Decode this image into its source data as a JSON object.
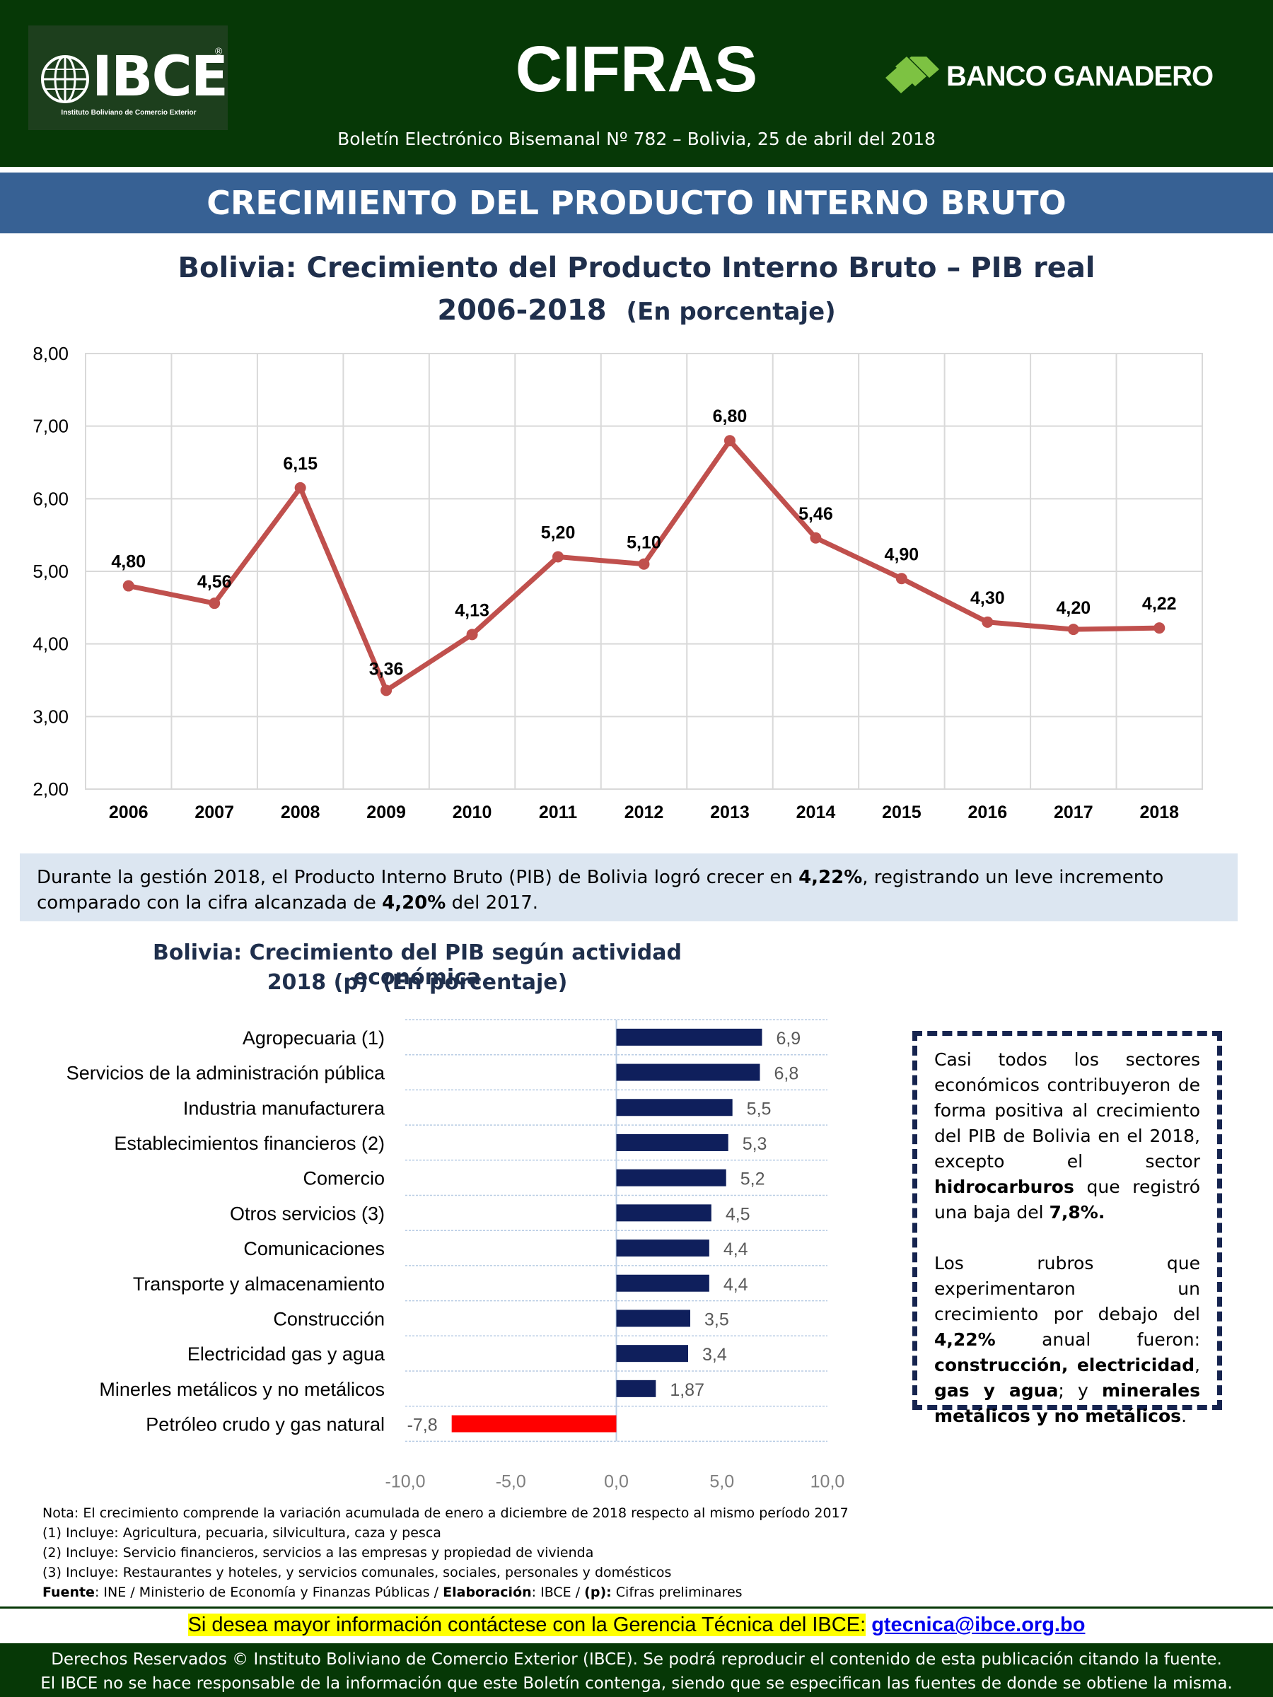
{
  "header": {
    "logo_text": "IBCE",
    "logo_subtitle": "Instituto Boliviano de Comercio Exterior",
    "title": "CIFRAS",
    "bank": "BANCO GANADERO",
    "bulletin": "Boletín Electrónico Bisemanal Nº 782 – Bolivia, 25 de abril del 2018",
    "colors": {
      "dark_green": "#063806",
      "banner_blue": "#376194"
    }
  },
  "section_title": "CRECIMIENTO DEL PRODUCTO INTERNO BRUTO",
  "chart_data": [
    {
      "type": "line",
      "title": "Bolivia: Crecimiento del Producto Interno Bruto – PIB real",
      "subtitle": "2006-2018",
      "unit": "(En porcentaje)",
      "x": [
        "2006",
        "2007",
        "2008",
        "2009",
        "2010",
        "2011",
        "2012",
        "2013",
        "2014",
        "2015",
        "2016",
        "2017",
        "2018"
      ],
      "values": [
        4.8,
        4.56,
        6.15,
        3.36,
        4.13,
        5.2,
        5.1,
        6.8,
        5.46,
        4.9,
        4.3,
        4.2,
        4.22
      ],
      "labels": [
        "4,80",
        "4,56",
        "6,15",
        "3,36",
        "4,13",
        "5,20",
        "5,10",
        "6,80",
        "5,46",
        "4,90",
        "4,30",
        "4,20",
        "4,22"
      ],
      "ylim": [
        2,
        8
      ],
      "yticks": [
        "2,00",
        "3,00",
        "4,00",
        "5,00",
        "6,00",
        "7,00",
        "8,00"
      ],
      "grid": true,
      "color": "#c0504d"
    },
    {
      "type": "bar",
      "orientation": "horizontal",
      "title": "Bolivia: Crecimiento del PIB según actividad económica",
      "subtitle": "2018 (p)",
      "unit": "(En porcentaje)",
      "categories": [
        "Agropecuaria (1)",
        "Servicios de la administración pública",
        "Industria manufacturera",
        "Establecimientos financieros (2)",
        "Comercio",
        "Otros servicios (3)",
        "Comunicaciones",
        "Transporte y almacenamiento",
        "Construcción",
        "Electricidad gas y agua",
        "Minerles metálicos y no metálicos",
        "Petróleo crudo y gas natural"
      ],
      "values": [
        6.9,
        6.8,
        5.5,
        5.3,
        5.2,
        4.5,
        4.4,
        4.4,
        3.5,
        3.4,
        1.87,
        -7.8
      ],
      "labels": [
        "6,9",
        "6,8",
        "5,5",
        "5,3",
        "5,2",
        "4,5",
        "4,4",
        "4,4",
        "3,5",
        "3,4",
        "1,87",
        "-7,8"
      ],
      "xlim": [
        -10,
        10
      ],
      "xticks": [
        "-10,0",
        "-5,0",
        "0,0",
        "5,0",
        "10,0"
      ],
      "colors": {
        "positive": "#0f1f5c",
        "negative": "#ff0000"
      }
    }
  ],
  "info": {
    "t1": "Durante la gestión 2018, el Producto Interno Bruto (PIB) de Bolivia logró crecer en ",
    "b1": "4,22%",
    "t2": ", registrando un leve incremento comparado con la cifra alcanzada de ",
    "b2": "4,20%",
    "t3": " del 2017."
  },
  "box": {
    "p1a": "Casi todos los sectores económicos contribuyeron de forma positiva al crecimiento del PIB de Bolivia en el 2018, excepto el sector ",
    "p1b": "hidrocarburos",
    "p1c": " que registró una baja del ",
    "p1d": "7,8%.",
    "p2a": "Los rubros que experimentaron un crecimiento por debajo del ",
    "p2b": "4,22%",
    "p2c": " anual fueron: ",
    "p2d": "construcción, electricidad",
    "p2e": ", ",
    "p2f": "gas y agua",
    "p2g": "; y ",
    "p2h": "minerales metálicos y no metálicos",
    "p2i": "."
  },
  "notes": {
    "n0": "Nota: El crecimiento comprende la variación acumulada de enero a diciembre de 2018 respecto al mismo período 2017",
    "n1": "(1) Incluye: Agricultura, pecuaria, silvicultura, caza y pesca",
    "n2": "(2) Incluye: Servicio financieros, servicios a las empresas y propiedad de vivienda",
    "n3": "(3) Incluye: Restaurantes y hoteles, y servicios comunales, sociales, personales y domésticos",
    "src_label": "Fuente",
    "src_text": ":  INE / Ministerio de Economía y Finanzas Públicas / ",
    "elab_label": "Elaboración",
    "elab_text": ": IBCE / ",
    "p_label": "(p):",
    "p_text": " Cifras preliminares"
  },
  "contact": {
    "text": "Si desea mayor información contáctese con la Gerencia Técnica del IBCE:",
    "email": "gtecnica@ibce.org.bo"
  },
  "footer": {
    "line1": "Derechos Reservados © Instituto Boliviano de Comercio Exterior (IBCE). Se podrá reproducir el contenido de esta publicación citando la fuente.",
    "line2": "El IBCE no se hace responsable de la información que este Boletín contenga, siendo que se especifican las fuentes de donde se obtiene la misma."
  }
}
